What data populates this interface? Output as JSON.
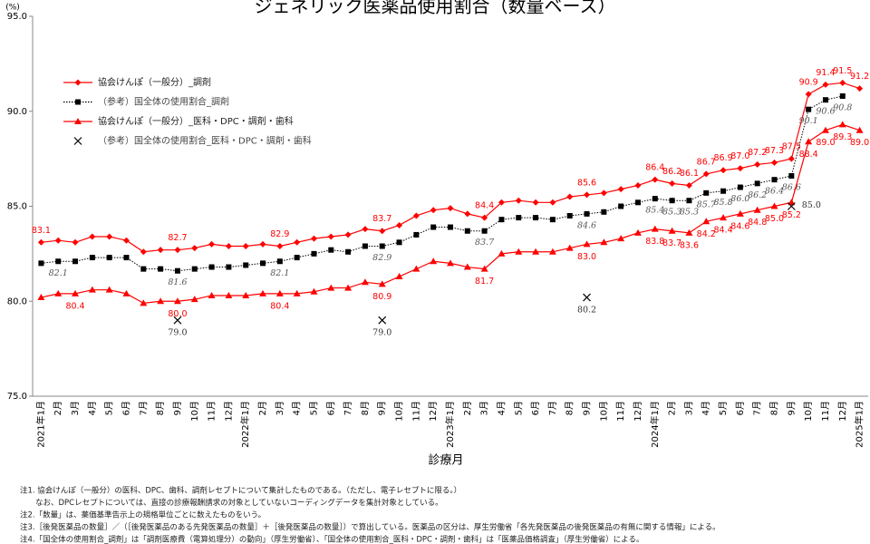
{
  "chart_data": {
    "type": "line",
    "title": "ジェネリック医薬品使用割合（数量ベース）",
    "y_unit": "(%)",
    "x_label": "診療月",
    "categories": [
      "2021年1月",
      "2月",
      "3月",
      "4月",
      "5月",
      "6月",
      "7月",
      "8月",
      "9月",
      "10月",
      "11月",
      "12月",
      "2022年1月",
      "2月",
      "3月",
      "4月",
      "5月",
      "6月",
      "7月",
      "8月",
      "9月",
      "10月",
      "11月",
      "12月",
      "2023年1月",
      "2月",
      "3月",
      "4月",
      "5月",
      "6月",
      "7月",
      "8月",
      "9月",
      "10月",
      "11月",
      "12月",
      "2024年1月",
      "2月",
      "3月",
      "4月",
      "5月",
      "6月",
      "7月",
      "8月",
      "9月",
      "10月",
      "11月",
      "12月",
      "2025年1月"
    ],
    "ylim": [
      75,
      95
    ],
    "yticks": [
      {
        "value": 75,
        "label": "75.0"
      },
      {
        "value": 80,
        "label": "80.0"
      },
      {
        "value": 85,
        "label": "85.0"
      },
      {
        "value": 90,
        "label": "90.0"
      },
      {
        "value": 95,
        "label": "95.0"
      }
    ],
    "grid": false,
    "legend": "upper left",
    "series": [
      {
        "name": "協会けんぽ（一般分）_調剤",
        "color": "#ff0000",
        "marker": "diamond",
        "line": "solid",
        "values": [
          83.1,
          83.2,
          83.1,
          83.4,
          83.4,
          83.2,
          82.6,
          82.7,
          82.7,
          82.8,
          83.0,
          82.9,
          82.9,
          83.0,
          82.9,
          83.1,
          83.3,
          83.4,
          83.5,
          83.8,
          83.7,
          84.0,
          84.5,
          84.8,
          84.9,
          84.6,
          84.4,
          85.2,
          85.3,
          85.2,
          85.2,
          85.5,
          85.6,
          85.7,
          85.9,
          86.1,
          86.4,
          86.2,
          86.1,
          86.7,
          86.9,
          87.0,
          87.2,
          87.3,
          87.5,
          90.9,
          91.4,
          91.5,
          91.2
        ],
        "value_labels": [
          "83.1",
          null,
          null,
          null,
          null,
          null,
          null,
          null,
          "82.7",
          null,
          null,
          null,
          null,
          null,
          "82.9",
          null,
          null,
          null,
          null,
          null,
          "83.7",
          null,
          null,
          null,
          null,
          null,
          "84.4",
          null,
          null,
          null,
          null,
          null,
          "85.6",
          null,
          null,
          null,
          "86.4",
          "86.2",
          "86.1",
          "86.7",
          "86.9",
          "87.0",
          "87.2",
          "87.3",
          "87.5",
          "90.9",
          "91.4",
          "91.5",
          "91.2"
        ]
      },
      {
        "name": "（参考）国全体の使用割合_調剤",
        "color": "#000000",
        "marker": "square",
        "line": "dotted",
        "values": [
          82.0,
          82.1,
          82.1,
          82.3,
          82.3,
          82.3,
          81.7,
          81.7,
          81.6,
          81.7,
          81.8,
          81.8,
          81.9,
          82.0,
          82.1,
          82.3,
          82.5,
          82.7,
          82.6,
          82.9,
          82.9,
          83.1,
          83.5,
          83.9,
          83.9,
          83.7,
          83.7,
          84.3,
          84.4,
          84.4,
          84.3,
          84.5,
          84.6,
          84.7,
          85.0,
          85.2,
          85.4,
          85.3,
          85.3,
          85.7,
          85.8,
          86.0,
          86.2,
          86.4,
          86.6,
          90.1,
          90.6,
          90.8,
          null
        ],
        "value_labels": [
          null,
          "82.1",
          null,
          null,
          null,
          null,
          null,
          null,
          "81.6",
          null,
          null,
          null,
          null,
          null,
          "82.1",
          null,
          null,
          null,
          null,
          null,
          "82.9",
          null,
          null,
          null,
          null,
          null,
          "83.7",
          null,
          null,
          null,
          null,
          null,
          "84.6",
          null,
          null,
          null,
          "85.4",
          "85.3",
          "85.3",
          "85.7",
          "85.8",
          "86.0",
          "86.2",
          "86.4",
          "86.6",
          "90.1",
          "90.6",
          "90.8",
          null
        ]
      },
      {
        "name": "協会けんぽ（一般分）_医科・DPC・調剤・歯科",
        "color": "#ff0000",
        "marker": "triangle",
        "line": "solid",
        "values": [
          80.2,
          80.4,
          80.4,
          80.6,
          80.6,
          80.4,
          79.9,
          80.0,
          80.0,
          80.1,
          80.3,
          80.3,
          80.3,
          80.4,
          80.4,
          80.4,
          80.5,
          80.7,
          80.7,
          81.0,
          80.9,
          81.3,
          81.7,
          82.1,
          82.0,
          81.8,
          81.7,
          82.5,
          82.6,
          82.6,
          82.6,
          82.8,
          83.0,
          83.1,
          83.3,
          83.6,
          83.8,
          83.7,
          83.6,
          84.2,
          84.4,
          84.6,
          84.8,
          85.0,
          85.2,
          88.4,
          89.0,
          89.3,
          89.0
        ],
        "value_labels": [
          null,
          null,
          "80.4",
          null,
          null,
          null,
          null,
          null,
          "80.0",
          null,
          null,
          null,
          null,
          null,
          "80.4",
          null,
          null,
          null,
          null,
          null,
          "80.9",
          null,
          null,
          null,
          null,
          null,
          "81.7",
          null,
          null,
          null,
          null,
          null,
          "83.0",
          null,
          null,
          null,
          "83.8",
          "83.7",
          "83.6",
          "84.2",
          "84.4",
          "84.6",
          "84.8",
          "85.0",
          "85.2",
          "88.4",
          "89.0",
          "89.3",
          "89.0"
        ]
      },
      {
        "name": "（参考）国全体の使用割合_医科・DPC・調剤・歯科",
        "color": "#000000",
        "marker": "cross",
        "line": "none",
        "values": [
          null,
          null,
          null,
          null,
          null,
          null,
          null,
          null,
          79.0,
          null,
          null,
          null,
          null,
          null,
          null,
          null,
          null,
          null,
          null,
          null,
          79.0,
          null,
          null,
          null,
          null,
          null,
          null,
          null,
          null,
          null,
          null,
          null,
          80.2,
          null,
          null,
          null,
          null,
          null,
          null,
          null,
          null,
          null,
          null,
          null,
          85.0,
          null,
          null,
          null,
          null
        ],
        "value_labels": [
          null,
          null,
          null,
          null,
          null,
          null,
          null,
          null,
          "79.0",
          null,
          null,
          null,
          null,
          null,
          null,
          null,
          null,
          null,
          null,
          null,
          "79.0",
          null,
          null,
          null,
          null,
          null,
          null,
          null,
          null,
          null,
          null,
          null,
          "80.2",
          null,
          null,
          null,
          null,
          null,
          null,
          null,
          null,
          null,
          null,
          null,
          "85.0",
          null,
          null,
          null,
          null
        ]
      }
    ],
    "notes": [
      "注1. 協会けんぽ（一般分）の医科、DPC、歯科、調剤レセプトについて集計したものである。（ただし、電子レセプトに限る。）",
      "　　なお、DPCレセプトについては、直接の診療報酬請求の対象としていないコーディングデータを集計対象としている。",
      "注2.「数量」は、薬価基準告示上の規格単位ごとに数えたものをいう。",
      "注3.［後発医薬品の数量］／（［後発医薬品のある先発医薬品の数量］＋［後発医薬品の数量］）で算出している。医薬品の区分は、厚生労働省「各先発医薬品の後発医薬品の有無に関する情報」による。",
      "注4.「国全体の使用割合_調剤」は「調剤医療費（電算処理分）の動向」（厚生労働省）、「国全体の使用割合_医科・DPC・調剤・歯科」は「医薬品価格調査」（厚生労働省）による。"
    ]
  }
}
